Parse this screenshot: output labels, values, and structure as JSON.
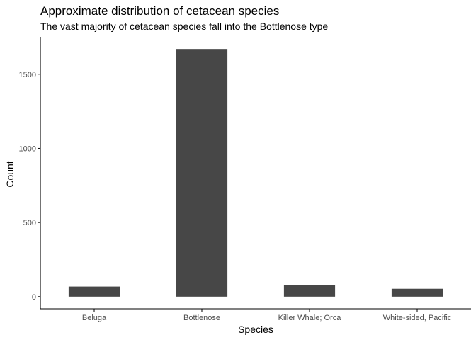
{
  "chart_data": {
    "type": "bar",
    "title": "Approximate distribution of cetacean species",
    "subtitle": "The vast majority of cetacean species fall into the Bottlenose type",
    "xlabel": "Species",
    "ylabel": "Count",
    "categories": [
      "Beluga",
      "Bottlenose",
      "Killer Whale; Orca",
      "White-sided, Pacific"
    ],
    "values": [
      68,
      1670,
      80,
      53
    ],
    "ylim": [
      -82,
      1752
    ],
    "yticks": [
      0,
      500,
      1000,
      1500
    ],
    "ytick_labels": [
      "0",
      "500",
      "1000",
      "1500"
    ],
    "grid": false,
    "legend": "none",
    "bar_color": "#474747",
    "axis_color": "#000000",
    "tick_label_color": "#4d4d4d"
  }
}
